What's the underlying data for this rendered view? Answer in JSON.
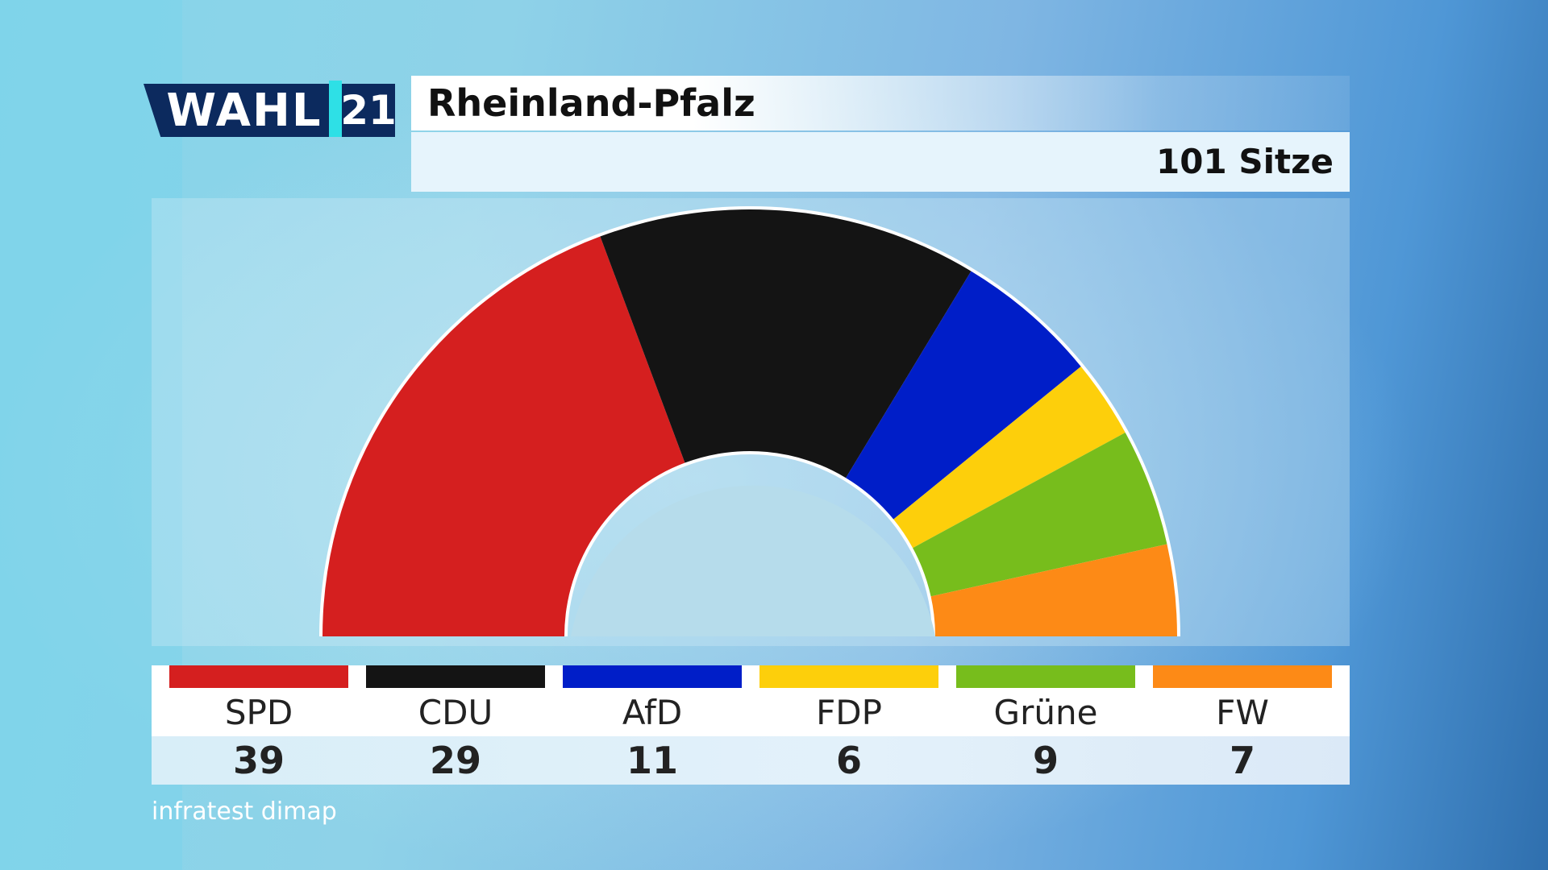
{
  "header": {
    "logo_word": "WAHL",
    "logo_year": "21",
    "title": "Rheinland-Pfalz",
    "seats_label": "101 Sitze"
  },
  "chart_data": {
    "type": "pie",
    "subtype": "parliament-hemicycle",
    "title": "Rheinland-Pfalz",
    "subtitle": "101 Sitze",
    "total": 101,
    "categories": [
      "SPD",
      "CDU",
      "AfD",
      "FDP",
      "Grüne",
      "FW"
    ],
    "values": [
      39,
      29,
      11,
      6,
      9,
      7
    ],
    "colors": [
      "#d51f1f",
      "#141414",
      "#001ec8",
      "#fdcf0b",
      "#77bd1c",
      "#fd8a16"
    ]
  },
  "legend": {
    "items": [
      {
        "name": "SPD",
        "value": "39",
        "color": "#d51f1f"
      },
      {
        "name": "CDU",
        "value": "29",
        "color": "#141414"
      },
      {
        "name": "AfD",
        "value": "11",
        "color": "#001ec8"
      },
      {
        "name": "FDP",
        "value": "6",
        "color": "#fdcf0b"
      },
      {
        "name": "Grüne",
        "value": "9",
        "color": "#77bd1c"
      },
      {
        "name": "FW",
        "value": "7",
        "color": "#fd8a16"
      }
    ]
  },
  "source": "infratest dimap"
}
